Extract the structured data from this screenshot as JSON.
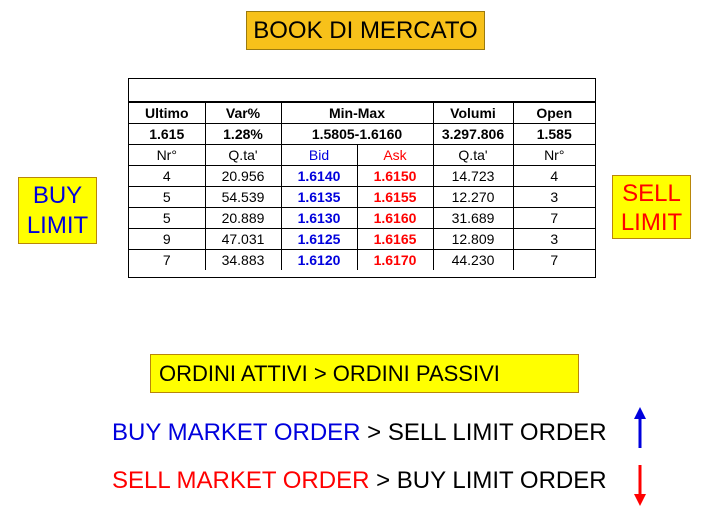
{
  "title": "BOOK DI MERCATO",
  "buy_limit": {
    "line1": "BUY",
    "line2": "LIMIT"
  },
  "sell_limit": {
    "line1": "SELL",
    "line2": "LIMIT"
  },
  "table": {
    "header": [
      "Ultimo",
      "Var%",
      "Min-Max",
      "Volumi",
      "Open"
    ],
    "summary": [
      "1.615",
      "1.28%",
      "1.5805-1.6160",
      "3.297.806",
      "1.585"
    ],
    "columns": [
      "Nr°",
      "Q.ta'",
      "Bid",
      "Ask",
      "Q.ta'",
      "Nr°"
    ],
    "rows": [
      [
        "4",
        "20.956",
        "1.6140",
        "1.6150",
        "14.723",
        "4"
      ],
      [
        "5",
        "54.539",
        "1.6135",
        "1.6155",
        "12.270",
        "3"
      ],
      [
        "5",
        "20.889",
        "1.6130",
        "1.6160",
        "31.689",
        "7"
      ],
      [
        "9",
        "47.031",
        "1.6125",
        "1.6165",
        "12.809",
        "3"
      ],
      [
        "7",
        "34.883",
        "1.6120",
        "1.6170",
        "44.230",
        "7"
      ]
    ]
  },
  "orders_box": "ORDINI ATTIVI > ORDINI PASSIVI",
  "line1": {
    "a": "BUY MARKET ORDER",
    "b": " > SELL LIMIT ORDER"
  },
  "line2": {
    "a": "SELL MARKET ORDER",
    "b": " > BUY LIMIT ORDER"
  },
  "icons": {
    "up": "arrow-up-icon",
    "down": "arrow-down-icon"
  },
  "colors": {
    "buy": "#0000dd",
    "sell": "#ff0000",
    "box": "#ffff00",
    "title_box": "#f7c11a"
  }
}
